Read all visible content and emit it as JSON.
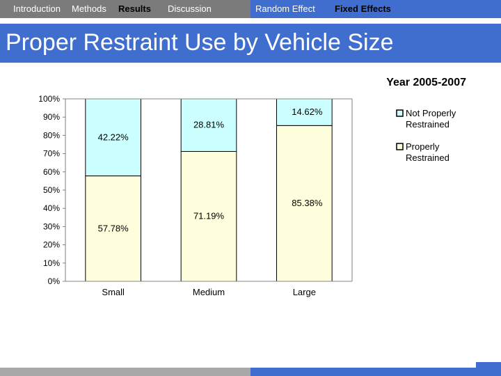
{
  "nav": {
    "items": [
      {
        "label": "Introduction",
        "active": false
      },
      {
        "label": "Methods",
        "active": false
      },
      {
        "label": "Results",
        "active": true
      },
      {
        "label": "Discussion",
        "active": false
      },
      {
        "label": "Random Effect",
        "active": false
      },
      {
        "label": "Fixed Effects",
        "active": true
      }
    ]
  },
  "page": {
    "title": "Proper Restraint Use by Vehicle Size"
  },
  "colors": {
    "nav_gray": "#7b7b7b",
    "accent_blue": "#3f6ecf",
    "properly_fill": "#ffffdd",
    "not_properly_fill": "#ccffff"
  },
  "chart_data": {
    "type": "bar",
    "stacked": true,
    "percent": true,
    "title": "Year 2005-2007",
    "categories": [
      "Small",
      "Medium",
      "Large"
    ],
    "series": [
      {
        "name": "Properly Restrained",
        "values": [
          57.78,
          71.19,
          85.38
        ],
        "labels": [
          "57.78%",
          "71.19%",
          "85.38%"
        ],
        "color": "#ffffdd"
      },
      {
        "name": "Not Properly Restrained",
        "values": [
          42.22,
          28.81,
          14.62
        ],
        "labels": [
          "42.22%",
          "28.81%",
          "14.62%"
        ],
        "color": "#ccffff"
      }
    ],
    "yticks": [
      "0%",
      "10%",
      "20%",
      "30%",
      "40%",
      "50%",
      "60%",
      "70%",
      "80%",
      "90%",
      "100%"
    ],
    "ylim": [
      0,
      100
    ],
    "grid": false,
    "legend": {
      "placement": "right",
      "entries": [
        "Not Properly Restrained",
        "Properly Restrained"
      ]
    }
  }
}
